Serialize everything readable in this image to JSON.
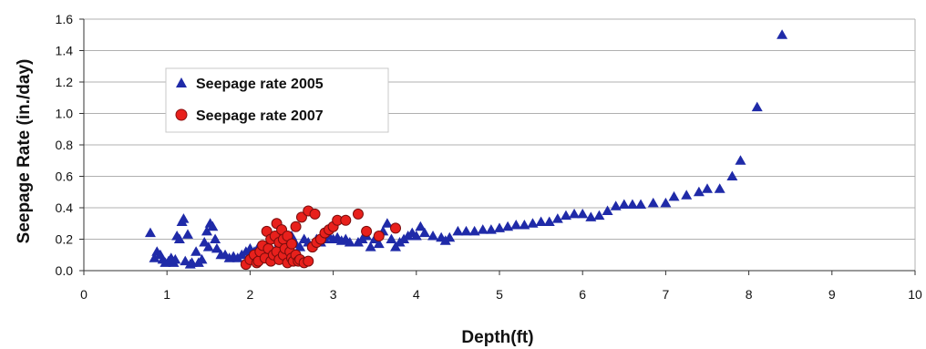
{
  "chart_data": {
    "type": "scatter",
    "xlabel": "Depth(ft)",
    "ylabel": "Seepage Rate (in./day)",
    "xlim": [
      0,
      10
    ],
    "ylim": [
      0,
      1.6
    ],
    "x_ticks": [
      "0",
      "1",
      "2",
      "3",
      "4",
      "5",
      "6",
      "7",
      "8",
      "9",
      "10"
    ],
    "y_ticks": [
      "0.0",
      "0.2",
      "0.4",
      "0.6",
      "0.8",
      "1.0",
      "1.2",
      "1.4",
      "1.6"
    ],
    "grid": "horizontal",
    "legend_position": "top-left",
    "series": [
      {
        "name": "Seepage rate 2005",
        "marker": "triangle",
        "color": "#1f2aa8",
        "points": [
          [
            0.8,
            0.24
          ],
          [
            0.85,
            0.08
          ],
          [
            0.88,
            0.12
          ],
          [
            0.92,
            0.1
          ],
          [
            0.95,
            0.07
          ],
          [
            0.98,
            0.05
          ],
          [
            1.02,
            0.06
          ],
          [
            1.05,
            0.08
          ],
          [
            1.08,
            0.05
          ],
          [
            1.1,
            0.07
          ],
          [
            1.12,
            0.22
          ],
          [
            1.15,
            0.2
          ],
          [
            1.18,
            0.31
          ],
          [
            1.2,
            0.33
          ],
          [
            1.22,
            0.06
          ],
          [
            1.25,
            0.23
          ],
          [
            1.28,
            0.04
          ],
          [
            1.3,
            0.05
          ],
          [
            1.35,
            0.12
          ],
          [
            1.38,
            0.05
          ],
          [
            1.42,
            0.07
          ],
          [
            1.45,
            0.18
          ],
          [
            1.48,
            0.25
          ],
          [
            1.5,
            0.15
          ],
          [
            1.52,
            0.3
          ],
          [
            1.55,
            0.28
          ],
          [
            1.58,
            0.2
          ],
          [
            1.6,
            0.14
          ],
          [
            1.65,
            0.1
          ],
          [
            1.7,
            0.1
          ],
          [
            1.75,
            0.08
          ],
          [
            1.8,
            0.09
          ],
          [
            1.85,
            0.08
          ],
          [
            1.9,
            0.1
          ],
          [
            1.95,
            0.12
          ],
          [
            2.0,
            0.14
          ],
          [
            2.05,
            0.12
          ],
          [
            2.1,
            0.15
          ],
          [
            2.15,
            0.12
          ],
          [
            2.2,
            0.16
          ],
          [
            2.25,
            0.14
          ],
          [
            2.3,
            0.1
          ],
          [
            2.35,
            0.18
          ],
          [
            2.4,
            0.15
          ],
          [
            2.45,
            0.2
          ],
          [
            2.5,
            0.22
          ],
          [
            2.55,
            0.17
          ],
          [
            2.6,
            0.15
          ],
          [
            2.65,
            0.2
          ],
          [
            2.7,
            0.18
          ],
          [
            2.75,
            0.16
          ],
          [
            2.8,
            0.2
          ],
          [
            2.85,
            0.18
          ],
          [
            2.9,
            0.2
          ],
          [
            2.95,
            0.22
          ],
          [
            3.0,
            0.2
          ],
          [
            3.05,
            0.21
          ],
          [
            3.1,
            0.19
          ],
          [
            3.15,
            0.2
          ],
          [
            3.2,
            0.18
          ],
          [
            3.3,
            0.18
          ],
          [
            3.35,
            0.2
          ],
          [
            3.4,
            0.22
          ],
          [
            3.45,
            0.15
          ],
          [
            3.5,
            0.2
          ],
          [
            3.55,
            0.17
          ],
          [
            3.6,
            0.25
          ],
          [
            3.65,
            0.3
          ],
          [
            3.7,
            0.2
          ],
          [
            3.75,
            0.15
          ],
          [
            3.8,
            0.18
          ],
          [
            3.85,
            0.2
          ],
          [
            3.9,
            0.22
          ],
          [
            3.95,
            0.24
          ],
          [
            4.0,
            0.22
          ],
          [
            4.05,
            0.28
          ],
          [
            4.1,
            0.24
          ],
          [
            4.2,
            0.22
          ],
          [
            4.3,
            0.21
          ],
          [
            4.35,
            0.19
          ],
          [
            4.4,
            0.21
          ],
          [
            4.5,
            0.25
          ],
          [
            4.6,
            0.25
          ],
          [
            4.7,
            0.25
          ],
          [
            4.8,
            0.26
          ],
          [
            4.9,
            0.26
          ],
          [
            5.0,
            0.27
          ],
          [
            5.1,
            0.28
          ],
          [
            5.2,
            0.29
          ],
          [
            5.3,
            0.29
          ],
          [
            5.4,
            0.3
          ],
          [
            5.5,
            0.31
          ],
          [
            5.6,
            0.31
          ],
          [
            5.7,
            0.33
          ],
          [
            5.8,
            0.35
          ],
          [
            5.9,
            0.36
          ],
          [
            6.0,
            0.36
          ],
          [
            6.1,
            0.34
          ],
          [
            6.2,
            0.35
          ],
          [
            6.3,
            0.38
          ],
          [
            6.4,
            0.41
          ],
          [
            6.5,
            0.42
          ],
          [
            6.6,
            0.42
          ],
          [
            6.7,
            0.42
          ],
          [
            6.85,
            0.43
          ],
          [
            7.0,
            0.43
          ],
          [
            7.1,
            0.47
          ],
          [
            7.25,
            0.48
          ],
          [
            7.4,
            0.5
          ],
          [
            7.5,
            0.52
          ],
          [
            7.65,
            0.52
          ],
          [
            7.8,
            0.6
          ],
          [
            7.9,
            0.7
          ],
          [
            8.1,
            1.04
          ],
          [
            8.4,
            1.5
          ]
        ]
      },
      {
        "name": "Seepage rate 2007",
        "marker": "circle",
        "color": "#e8201c",
        "points": [
          [
            1.95,
            0.04
          ],
          [
            2.0,
            0.07
          ],
          [
            2.05,
            0.1
          ],
          [
            2.08,
            0.05
          ],
          [
            2.1,
            0.06
          ],
          [
            2.12,
            0.12
          ],
          [
            2.15,
            0.16
          ],
          [
            2.18,
            0.08
          ],
          [
            2.2,
            0.25
          ],
          [
            2.22,
            0.14
          ],
          [
            2.25,
            0.2
          ],
          [
            2.25,
            0.06
          ],
          [
            2.28,
            0.1
          ],
          [
            2.3,
            0.22
          ],
          [
            2.32,
            0.12
          ],
          [
            2.32,
            0.3
          ],
          [
            2.35,
            0.18
          ],
          [
            2.35,
            0.07
          ],
          [
            2.38,
            0.26
          ],
          [
            2.4,
            0.1
          ],
          [
            2.4,
            0.2
          ],
          [
            2.42,
            0.14
          ],
          [
            2.45,
            0.05
          ],
          [
            2.45,
            0.22
          ],
          [
            2.48,
            0.12
          ],
          [
            2.5,
            0.08
          ],
          [
            2.5,
            0.17
          ],
          [
            2.52,
            0.06
          ],
          [
            2.55,
            0.28
          ],
          [
            2.55,
            0.1
          ],
          [
            2.58,
            0.06
          ],
          [
            2.6,
            0.07
          ],
          [
            2.62,
            0.34
          ],
          [
            2.65,
            0.05
          ],
          [
            2.7,
            0.38
          ],
          [
            2.7,
            0.06
          ],
          [
            2.75,
            0.15
          ],
          [
            2.78,
            0.36
          ],
          [
            2.8,
            0.18
          ],
          [
            2.85,
            0.2
          ],
          [
            2.9,
            0.24
          ],
          [
            2.95,
            0.26
          ],
          [
            3.0,
            0.28
          ],
          [
            3.05,
            0.32
          ],
          [
            3.15,
            0.32
          ],
          [
            3.3,
            0.36
          ],
          [
            3.4,
            0.25
          ],
          [
            3.55,
            0.22
          ],
          [
            3.75,
            0.27
          ]
        ]
      }
    ]
  }
}
